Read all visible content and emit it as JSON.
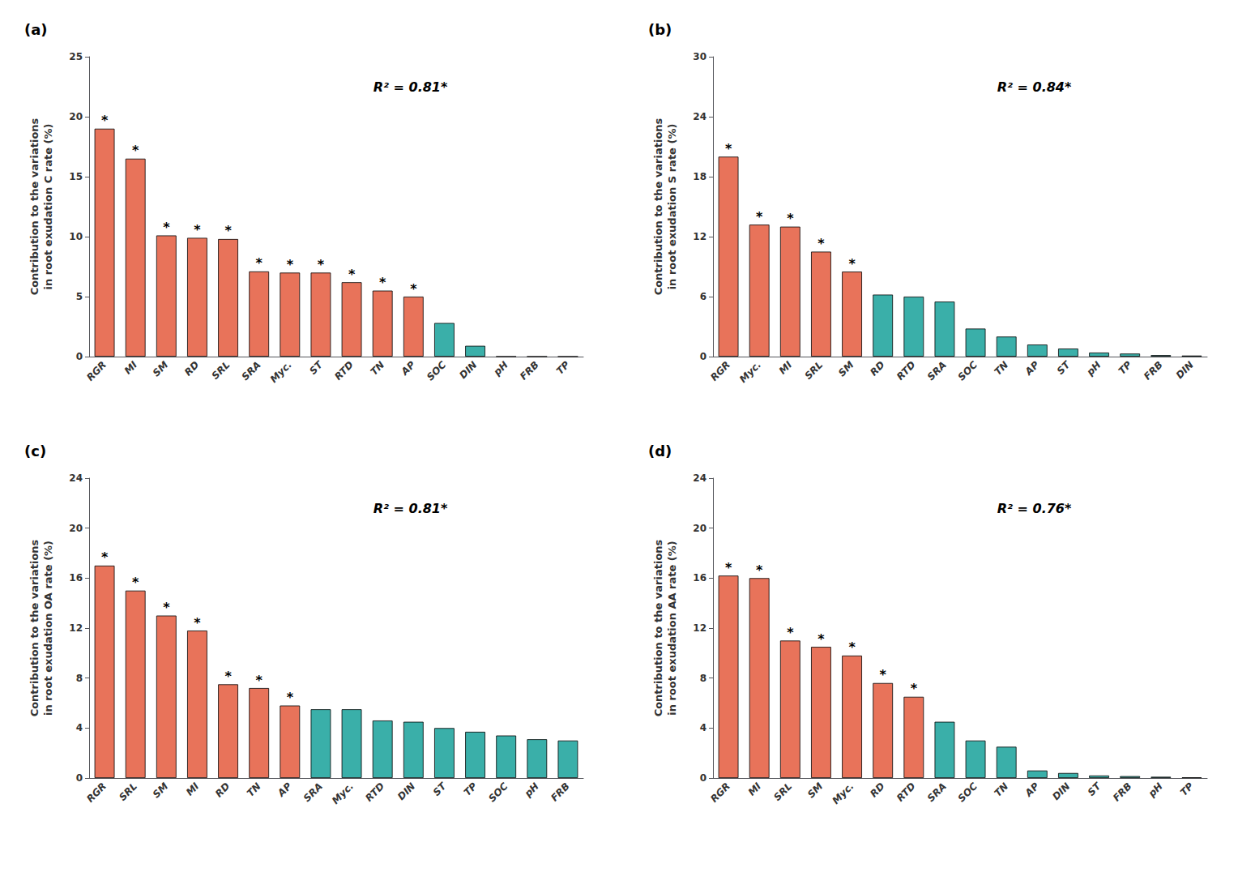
{
  "chart_data": [
    {
      "type": "bar",
      "title": "(a)",
      "annotation": "R² = 0.81*",
      "ylabel": "Contribution to the variations\nin root exudation C rate (%)",
      "categories": [
        "RGR",
        "MI",
        "SM",
        "RD",
        "SRL",
        "SRA",
        "Myc.",
        "ST",
        "RTD",
        "TN",
        "AP",
        "SOC",
        "DIN",
        "pH",
        "FRB",
        "TP"
      ],
      "values": [
        19.0,
        16.5,
        10.1,
        9.9,
        9.8,
        7.1,
        7.0,
        7.0,
        6.2,
        5.5,
        5.0,
        2.8,
        0.9,
        0.0,
        0.0,
        0.0
      ],
      "bar_annotations": [
        "*",
        "*",
        "*",
        "*",
        "*",
        "*",
        "*",
        "*",
        "*",
        "*",
        "*",
        null,
        null,
        null,
        null,
        null
      ],
      "colors": [
        "#E8735A",
        "#E8735A",
        "#E8735A",
        "#E8735A",
        "#E8735A",
        "#E8735A",
        "#E8735A",
        "#E8735A",
        "#E8735A",
        "#E8735A",
        "#E8735A",
        "#3AAFA9",
        "#3AAFA9",
        "#3AAFA9",
        "#3AAFA9",
        "#3AAFA9"
      ],
      "ylim": [
        0,
        25
      ],
      "yticks": [
        0,
        5,
        10,
        15,
        20,
        25
      ],
      "grid": false
    },
    {
      "type": "bar",
      "title": "(b)",
      "annotation": "R² = 0.84*",
      "ylabel": "Contribution to the variations\nin root exudation S rate (%)",
      "categories": [
        "RGR",
        "Myc.",
        "MI",
        "SRL",
        "SM",
        "RD",
        "RTD",
        "SRA",
        "SOC",
        "TN",
        "AP",
        "ST",
        "pH",
        "TP",
        "FRB",
        "DIN"
      ],
      "values": [
        20.0,
        13.2,
        13.0,
        10.5,
        8.5,
        6.2,
        6.0,
        5.5,
        2.8,
        2.0,
        1.2,
        0.8,
        0.4,
        0.3,
        0.15,
        0.1
      ],
      "bar_annotations": [
        "*",
        "*",
        "*",
        "*",
        "*",
        null,
        null,
        null,
        null,
        null,
        null,
        null,
        null,
        null,
        null,
        null
      ],
      "colors": [
        "#E8735A",
        "#E8735A",
        "#E8735A",
        "#E8735A",
        "#E8735A",
        "#3AAFA9",
        "#3AAFA9",
        "#3AAFA9",
        "#3AAFA9",
        "#3AAFA9",
        "#3AAFA9",
        "#3AAFA9",
        "#3AAFA9",
        "#3AAFA9",
        "#3AAFA9",
        "#3AAFA9"
      ],
      "ylim": [
        0,
        30
      ],
      "yticks": [
        0,
        6,
        12,
        18,
        24,
        30
      ],
      "grid": false
    },
    {
      "type": "bar",
      "title": "(c)",
      "annotation": "R² = 0.81*",
      "ylabel": "Contribution to the variations\nin root exudation OA rate (%)",
      "categories": [
        "RGR",
        "SRL",
        "SM",
        "MI",
        "RD",
        "TN",
        "AP",
        "SRA",
        "Myc.",
        "RTD",
        "DIN",
        "ST",
        "TP",
        "SOC",
        "pH",
        "FRB"
      ],
      "values": [
        17.0,
        15.0,
        13.0,
        11.8,
        7.5,
        7.2,
        5.8,
        5.5,
        5.5,
        4.6,
        4.5,
        4.0,
        3.7,
        3.4,
        3.1,
        3.0
      ],
      "bar_annotations": [
        "*",
        "*",
        "*",
        "*",
        "*",
        "*",
        "*",
        null,
        null,
        null,
        null,
        null,
        null,
        null,
        null,
        null
      ],
      "colors": [
        "#E8735A",
        "#E8735A",
        "#E8735A",
        "#E8735A",
        "#E8735A",
        "#E8735A",
        "#E8735A",
        "#3AAFA9",
        "#3AAFA9",
        "#3AAFA9",
        "#3AAFA9",
        "#3AAFA9",
        "#3AAFA9",
        "#3AAFA9",
        "#3AAFA9",
        "#3AAFA9"
      ],
      "ylim": [
        0,
        24
      ],
      "yticks": [
        0,
        4,
        8,
        12,
        16,
        20,
        24
      ],
      "grid": false
    },
    {
      "type": "bar",
      "title": "(d)",
      "annotation": "R² = 0.76*",
      "ylabel": "Contribution to the variations\nin root exudation AA rate (%)",
      "categories": [
        "RGR",
        "MI",
        "SRL",
        "SM",
        "Myc.",
        "RD",
        "RTD",
        "SRA",
        "SOC",
        "TN",
        "AP",
        "DIN",
        "ST",
        "FRB",
        "pH",
        "TP"
      ],
      "values": [
        16.2,
        16.0,
        11.0,
        10.5,
        9.8,
        7.6,
        6.5,
        4.5,
        3.0,
        2.5,
        0.6,
        0.4,
        0.2,
        0.15,
        0.1,
        0.05
      ],
      "bar_annotations": [
        "*",
        "*",
        "*",
        "*",
        "*",
        "*",
        "*",
        null,
        null,
        null,
        null,
        null,
        null,
        null,
        null,
        null
      ],
      "colors": [
        "#E8735A",
        "#E8735A",
        "#E8735A",
        "#E8735A",
        "#E8735A",
        "#E8735A",
        "#E8735A",
        "#3AAFA9",
        "#3AAFA9",
        "#3AAFA9",
        "#3AAFA9",
        "#3AAFA9",
        "#3AAFA9",
        "#3AAFA9",
        "#3AAFA9",
        "#3AAFA9"
      ],
      "ylim": [
        0,
        24
      ],
      "yticks": [
        0,
        4,
        8,
        12,
        16,
        20,
        24
      ],
      "grid": false
    }
  ]
}
